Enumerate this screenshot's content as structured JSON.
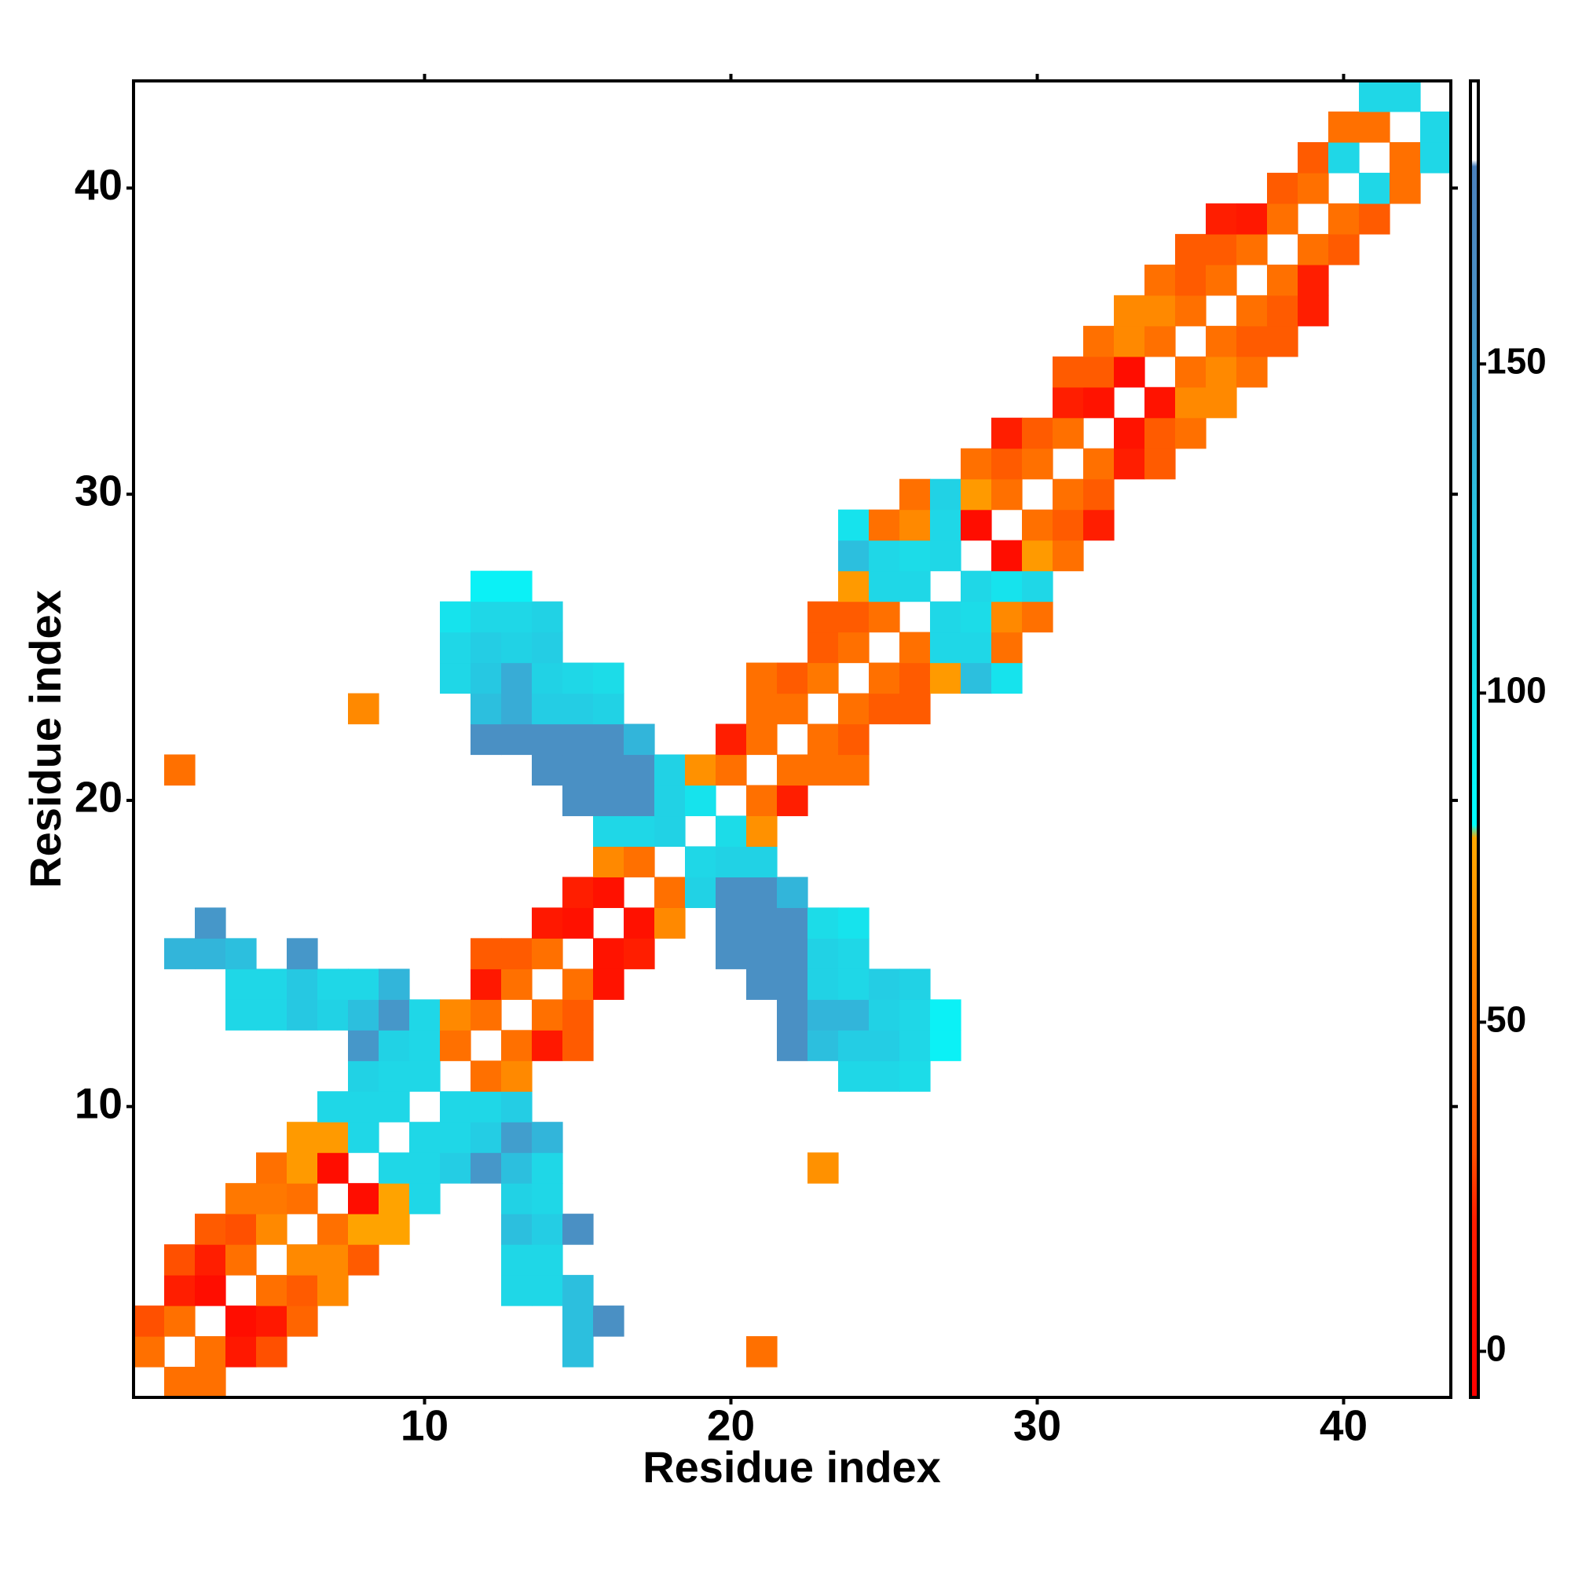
{
  "chart_data": {
    "type": "heatmap",
    "x_label": "Residue index",
    "y_label": "Residue index",
    "xlim": [
      0.5,
      43.5
    ],
    "ylim": [
      0.5,
      43.5
    ],
    "xticks": [
      10,
      20,
      30,
      40
    ],
    "yticks": [
      10,
      20,
      30,
      40
    ],
    "colorbar": {
      "lim": [
        -7,
        193
      ],
      "ticks": [
        0,
        50,
        100,
        150
      ]
    },
    "colorscale": [
      [
        -7,
        "#ff0000"
      ],
      [
        20,
        "#ff1e00"
      ],
      [
        30,
        "#ff5000"
      ],
      [
        45,
        "#ff7000"
      ],
      [
        62,
        "#ff8c00"
      ],
      [
        78,
        "#ffa800"
      ],
      [
        80,
        "#00ffff"
      ],
      [
        105,
        "#1cdce8"
      ],
      [
        125,
        "#26c8e2"
      ],
      [
        140,
        "#38acd6"
      ],
      [
        160,
        "#4a90c4"
      ],
      [
        180,
        "#4a80bc"
      ],
      [
        181,
        "#ffffff"
      ],
      [
        193,
        "#ffffff"
      ]
    ],
    "cells": [
      [
        2,
        1,
        45
      ],
      [
        3,
        1,
        45
      ],
      [
        1,
        2,
        45
      ],
      [
        3,
        2,
        45
      ],
      [
        4,
        2,
        15
      ],
      [
        5,
        2,
        30
      ],
      [
        15,
        2,
        130
      ],
      [
        21,
        2,
        45
      ],
      [
        1,
        3,
        30
      ],
      [
        2,
        3,
        45
      ],
      [
        4,
        3,
        5
      ],
      [
        5,
        3,
        15
      ],
      [
        6,
        3,
        40
      ],
      [
        15,
        3,
        130
      ],
      [
        16,
        3,
        160
      ],
      [
        2,
        4,
        20
      ],
      [
        3,
        4,
        5
      ],
      [
        5,
        4,
        45
      ],
      [
        6,
        4,
        35
      ],
      [
        7,
        4,
        60
      ],
      [
        13,
        4,
        110
      ],
      [
        14,
        4,
        110
      ],
      [
        15,
        4,
        130
      ],
      [
        2,
        5,
        30
      ],
      [
        3,
        5,
        20
      ],
      [
        4,
        5,
        45
      ],
      [
        6,
        5,
        60
      ],
      [
        7,
        5,
        60
      ],
      [
        8,
        5,
        35
      ],
      [
        13,
        5,
        110
      ],
      [
        14,
        5,
        110
      ],
      [
        3,
        6,
        35
      ],
      [
        4,
        6,
        30
      ],
      [
        5,
        6,
        60
      ],
      [
        7,
        6,
        45
      ],
      [
        8,
        6,
        75
      ],
      [
        9,
        6,
        75
      ],
      [
        13,
        6,
        130
      ],
      [
        14,
        6,
        120
      ],
      [
        15,
        6,
        160
      ],
      [
        4,
        7,
        50
      ],
      [
        5,
        7,
        50
      ],
      [
        6,
        7,
        45
      ],
      [
        8,
        7,
        5
      ],
      [
        9,
        7,
        75
      ],
      [
        10,
        7,
        110
      ],
      [
        13,
        7,
        115
      ],
      [
        14,
        7,
        110
      ],
      [
        5,
        8,
        45
      ],
      [
        6,
        8,
        70
      ],
      [
        7,
        8,
        5
      ],
      [
        9,
        8,
        110
      ],
      [
        10,
        8,
        110
      ],
      [
        11,
        8,
        120
      ],
      [
        12,
        8,
        155
      ],
      [
        13,
        8,
        130
      ],
      [
        14,
        8,
        110
      ],
      [
        23,
        8,
        65
      ],
      [
        6,
        9,
        70
      ],
      [
        7,
        9,
        70
      ],
      [
        8,
        9,
        110
      ],
      [
        10,
        9,
        110
      ],
      [
        11,
        9,
        110
      ],
      [
        12,
        9,
        120
      ],
      [
        13,
        9,
        150
      ],
      [
        14,
        9,
        135
      ],
      [
        7,
        10,
        110
      ],
      [
        8,
        10,
        110
      ],
      [
        9,
        10,
        110
      ],
      [
        11,
        10,
        110
      ],
      [
        12,
        10,
        110
      ],
      [
        13,
        10,
        120
      ],
      [
        8,
        11,
        115
      ],
      [
        9,
        11,
        110
      ],
      [
        10,
        11,
        110
      ],
      [
        12,
        11,
        45
      ],
      [
        13,
        11,
        60
      ],
      [
        24,
        11,
        110
      ],
      [
        25,
        11,
        110
      ],
      [
        26,
        11,
        105
      ],
      [
        8,
        12,
        155
      ],
      [
        9,
        12,
        115
      ],
      [
        10,
        12,
        110
      ],
      [
        11,
        12,
        45
      ],
      [
        13,
        12,
        45
      ],
      [
        14,
        12,
        15
      ],
      [
        15,
        12,
        35
      ],
      [
        22,
        12,
        160
      ],
      [
        23,
        12,
        130
      ],
      [
        24,
        12,
        120
      ],
      [
        25,
        12,
        120
      ],
      [
        26,
        12,
        110
      ],
      [
        27,
        12,
        90
      ],
      [
        4,
        13,
        110
      ],
      [
        5,
        13,
        110
      ],
      [
        6,
        13,
        125
      ],
      [
        7,
        13,
        115
      ],
      [
        8,
        13,
        130
      ],
      [
        9,
        13,
        155
      ],
      [
        10,
        13,
        110
      ],
      [
        11,
        13,
        60
      ],
      [
        12,
        13,
        45
      ],
      [
        14,
        13,
        45
      ],
      [
        15,
        13,
        35
      ],
      [
        22,
        13,
        160
      ],
      [
        23,
        13,
        135
      ],
      [
        24,
        13,
        135
      ],
      [
        25,
        13,
        115
      ],
      [
        26,
        13,
        110
      ],
      [
        27,
        13,
        90
      ],
      [
        4,
        14,
        110
      ],
      [
        5,
        14,
        110
      ],
      [
        6,
        14,
        125
      ],
      [
        7,
        14,
        110
      ],
      [
        8,
        14,
        110
      ],
      [
        9,
        14,
        135
      ],
      [
        12,
        14,
        15
      ],
      [
        13,
        14,
        45
      ],
      [
        15,
        14,
        45
      ],
      [
        16,
        14,
        10
      ],
      [
        21,
        14,
        160
      ],
      [
        22,
        14,
        160
      ],
      [
        23,
        14,
        115
      ],
      [
        24,
        14,
        110
      ],
      [
        25,
        14,
        120
      ],
      [
        26,
        14,
        115
      ],
      [
        2,
        15,
        135
      ],
      [
        3,
        15,
        135
      ],
      [
        4,
        15,
        130
      ],
      [
        6,
        15,
        155
      ],
      [
        12,
        15,
        35
      ],
      [
        13,
        15,
        35
      ],
      [
        14,
        15,
        45
      ],
      [
        16,
        15,
        10
      ],
      [
        17,
        15,
        20
      ],
      [
        20,
        15,
        160
      ],
      [
        21,
        15,
        160
      ],
      [
        22,
        15,
        160
      ],
      [
        23,
        15,
        115
      ],
      [
        24,
        15,
        110
      ],
      [
        3,
        16,
        155
      ],
      [
        14,
        16,
        15
      ],
      [
        15,
        16,
        8
      ],
      [
        17,
        16,
        8
      ],
      [
        18,
        16,
        60
      ],
      [
        20,
        16,
        160
      ],
      [
        21,
        16,
        160
      ],
      [
        22,
        16,
        160
      ],
      [
        23,
        16,
        105
      ],
      [
        24,
        16,
        100
      ],
      [
        15,
        17,
        20
      ],
      [
        16,
        17,
        8
      ],
      [
        18,
        17,
        45
      ],
      [
        19,
        17,
        115
      ],
      [
        20,
        17,
        160
      ],
      [
        21,
        17,
        160
      ],
      [
        22,
        17,
        135
      ],
      [
        16,
        18,
        60
      ],
      [
        17,
        18,
        45
      ],
      [
        19,
        18,
        110
      ],
      [
        20,
        18,
        115
      ],
      [
        21,
        18,
        115
      ],
      [
        16,
        19,
        110
      ],
      [
        17,
        19,
        110
      ],
      [
        18,
        19,
        115
      ],
      [
        20,
        19,
        105
      ],
      [
        21,
        19,
        65
      ],
      [
        15,
        20,
        160
      ],
      [
        16,
        20,
        160
      ],
      [
        17,
        20,
        160
      ],
      [
        18,
        20,
        115
      ],
      [
        19,
        20,
        100
      ],
      [
        21,
        20,
        45
      ],
      [
        22,
        20,
        20
      ],
      [
        2,
        21,
        45
      ],
      [
        14,
        21,
        160
      ],
      [
        15,
        21,
        160
      ],
      [
        16,
        21,
        160
      ],
      [
        17,
        21,
        160
      ],
      [
        18,
        21,
        115
      ],
      [
        19,
        21,
        65
      ],
      [
        20,
        21,
        45
      ],
      [
        22,
        21,
        45
      ],
      [
        23,
        21,
        45
      ],
      [
        24,
        21,
        45
      ],
      [
        12,
        22,
        160
      ],
      [
        13,
        22,
        160
      ],
      [
        14,
        22,
        160
      ],
      [
        15,
        22,
        160
      ],
      [
        16,
        22,
        160
      ],
      [
        17,
        22,
        135
      ],
      [
        20,
        22,
        20
      ],
      [
        21,
        22,
        45
      ],
      [
        23,
        22,
        45
      ],
      [
        24,
        22,
        35
      ],
      [
        8,
        23,
        60
      ],
      [
        12,
        23,
        130
      ],
      [
        13,
        23,
        140
      ],
      [
        14,
        23,
        120
      ],
      [
        15,
        23,
        120
      ],
      [
        16,
        23,
        115
      ],
      [
        21,
        23,
        45
      ],
      [
        22,
        23,
        45
      ],
      [
        24,
        23,
        45
      ],
      [
        25,
        23,
        35
      ],
      [
        26,
        23,
        35
      ],
      [
        11,
        24,
        110
      ],
      [
        12,
        24,
        125
      ],
      [
        13,
        24,
        140
      ],
      [
        14,
        24,
        115
      ],
      [
        15,
        24,
        110
      ],
      [
        16,
        24,
        105
      ],
      [
        21,
        24,
        45
      ],
      [
        22,
        24,
        35
      ],
      [
        23,
        24,
        50
      ],
      [
        25,
        24,
        45
      ],
      [
        26,
        24,
        35
      ],
      [
        27,
        24,
        70
      ],
      [
        28,
        24,
        130
      ],
      [
        29,
        24,
        100
      ],
      [
        11,
        25,
        110
      ],
      [
        12,
        25,
        120
      ],
      [
        13,
        25,
        115
      ],
      [
        14,
        25,
        120
      ],
      [
        23,
        25,
        35
      ],
      [
        24,
        25,
        45
      ],
      [
        26,
        25,
        45
      ],
      [
        27,
        25,
        110
      ],
      [
        28,
        25,
        110
      ],
      [
        29,
        25,
        45
      ],
      [
        11,
        26,
        100
      ],
      [
        12,
        26,
        110
      ],
      [
        13,
        26,
        110
      ],
      [
        14,
        26,
        115
      ],
      [
        23,
        26,
        35
      ],
      [
        24,
        26,
        35
      ],
      [
        25,
        26,
        45
      ],
      [
        27,
        26,
        110
      ],
      [
        28,
        26,
        105
      ],
      [
        29,
        26,
        60
      ],
      [
        30,
        26,
        45
      ],
      [
        12,
        27,
        90
      ],
      [
        13,
        27,
        90
      ],
      [
        24,
        27,
        70
      ],
      [
        25,
        27,
        110
      ],
      [
        26,
        27,
        110
      ],
      [
        28,
        27,
        110
      ],
      [
        29,
        27,
        100
      ],
      [
        30,
        27,
        110
      ],
      [
        24,
        28,
        130
      ],
      [
        25,
        28,
        110
      ],
      [
        26,
        28,
        105
      ],
      [
        27,
        28,
        110
      ],
      [
        29,
        28,
        5
      ],
      [
        30,
        28,
        70
      ],
      [
        31,
        28,
        45
      ],
      [
        24,
        29,
        100
      ],
      [
        25,
        29,
        45
      ],
      [
        26,
        29,
        60
      ],
      [
        27,
        29,
        110
      ],
      [
        28,
        29,
        5
      ],
      [
        30,
        29,
        45
      ],
      [
        31,
        29,
        35
      ],
      [
        32,
        29,
        20
      ],
      [
        26,
        30,
        45
      ],
      [
        27,
        30,
        115
      ],
      [
        28,
        30,
        70
      ],
      [
        29,
        30,
        45
      ],
      [
        31,
        30,
        45
      ],
      [
        32,
        30,
        35
      ],
      [
        28,
        31,
        45
      ],
      [
        29,
        31,
        35
      ],
      [
        30,
        31,
        45
      ],
      [
        32,
        31,
        45
      ],
      [
        33,
        31,
        20
      ],
      [
        34,
        31,
        35
      ],
      [
        29,
        32,
        20
      ],
      [
        30,
        32,
        35
      ],
      [
        31,
        32,
        45
      ],
      [
        33,
        32,
        10
      ],
      [
        34,
        32,
        35
      ],
      [
        35,
        32,
        45
      ],
      [
        31,
        33,
        20
      ],
      [
        32,
        33,
        10
      ],
      [
        34,
        33,
        10
      ],
      [
        35,
        33,
        60
      ],
      [
        36,
        33,
        60
      ],
      [
        31,
        34,
        35
      ],
      [
        32,
        34,
        35
      ],
      [
        33,
        34,
        5
      ],
      [
        35,
        34,
        45
      ],
      [
        36,
        34,
        60
      ],
      [
        37,
        34,
        45
      ],
      [
        32,
        35,
        45
      ],
      [
        33,
        35,
        60
      ],
      [
        34,
        35,
        45
      ],
      [
        36,
        35,
        45
      ],
      [
        37,
        35,
        35
      ],
      [
        38,
        35,
        35
      ],
      [
        33,
        36,
        60
      ],
      [
        34,
        36,
        60
      ],
      [
        35,
        36,
        45
      ],
      [
        37,
        36,
        45
      ],
      [
        38,
        36,
        35
      ],
      [
        39,
        36,
        20
      ],
      [
        34,
        37,
        45
      ],
      [
        35,
        37,
        35
      ],
      [
        36,
        37,
        45
      ],
      [
        38,
        37,
        45
      ],
      [
        39,
        37,
        20
      ],
      [
        35,
        38,
        35
      ],
      [
        36,
        38,
        35
      ],
      [
        37,
        38,
        45
      ],
      [
        39,
        38,
        45
      ],
      [
        40,
        38,
        35
      ],
      [
        36,
        39,
        20
      ],
      [
        37,
        39,
        15
      ],
      [
        38,
        39,
        45
      ],
      [
        40,
        39,
        45
      ],
      [
        41,
        39,
        35
      ],
      [
        38,
        40,
        35
      ],
      [
        39,
        40,
        45
      ],
      [
        41,
        40,
        110
      ],
      [
        42,
        40,
        45
      ],
      [
        39,
        41,
        35
      ],
      [
        40,
        41,
        110
      ],
      [
        42,
        41,
        45
      ],
      [
        43,
        41,
        110
      ],
      [
        40,
        42,
        45
      ],
      [
        41,
        42,
        45
      ],
      [
        43,
        42,
        110
      ],
      [
        41,
        43,
        110
      ],
      [
        42,
        43,
        110
      ]
    ]
  }
}
